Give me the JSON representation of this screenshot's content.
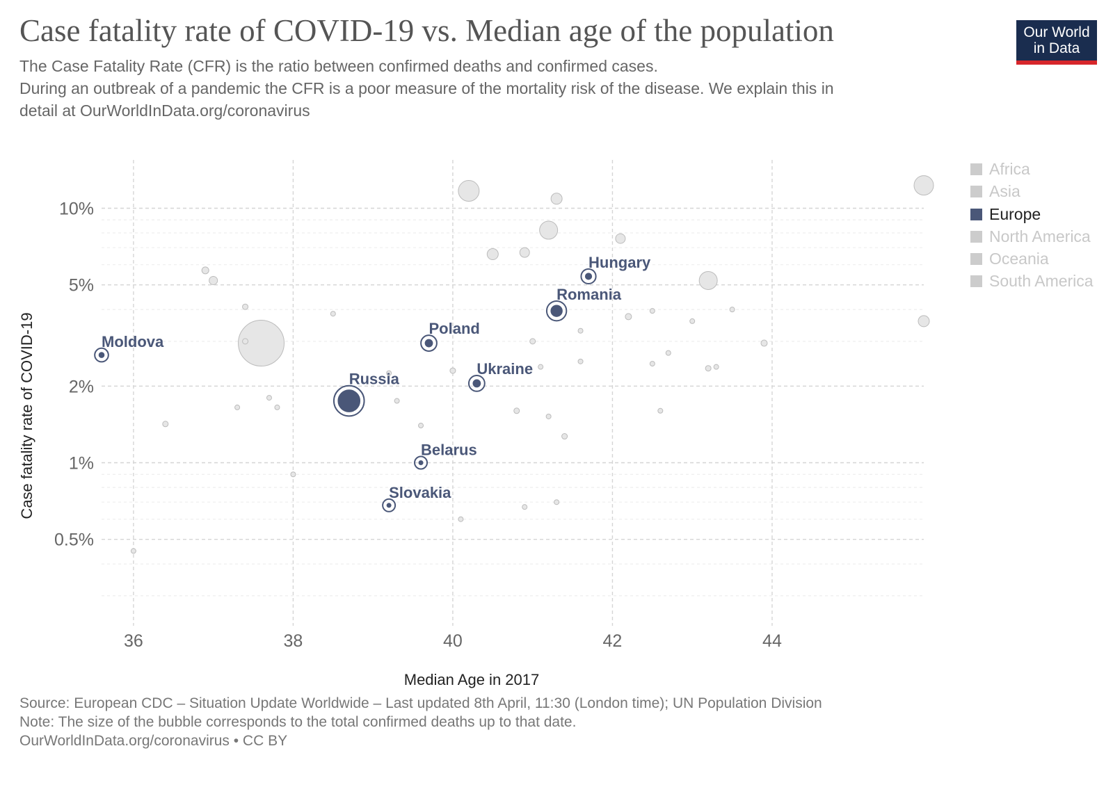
{
  "header": {
    "title": "Case fatality rate of COVID-19 vs. Median age of the population",
    "subtitle_1": "The Case Fatality Rate (CFR) is the ratio between confirmed deaths and confirmed cases.",
    "subtitle_2": "During an outbreak of a pandemic the CFR is a poor measure of the mortality risk of the disease. We explain this in",
    "subtitle_3": "detail at OurWorldInData.org/coronavirus"
  },
  "logo": {
    "line_1": "Our World",
    "line_2": "in Data",
    "bg_color": "#1a2d4f",
    "accent_color": "#d7262b"
  },
  "legend": {
    "items": [
      {
        "label": "Africa",
        "active": false
      },
      {
        "label": "Asia",
        "active": false
      },
      {
        "label": "Europe",
        "active": true
      },
      {
        "label": "North America",
        "active": false
      },
      {
        "label": "Oceania",
        "active": false
      },
      {
        "label": "South America",
        "active": false
      }
    ],
    "active_color": "#4a5778",
    "inactive_color": "#cccccc"
  },
  "footer": {
    "source": "Source: European CDC – Situation Update Worldwide – Last updated 8th April, 11:30 (London time); UN Population Division",
    "note": "Note: The size of the bubble corresponds to the total confirmed deaths up to that date.",
    "credit": "OurWorldInData.org/coronavirus • CC BY"
  },
  "chart_data": {
    "type": "scatter",
    "title": "Case fatality rate of COVID-19 vs. Median age of the population",
    "xlabel": "Median Age in 2017",
    "ylabel": "Case fatality rate of COVID-19",
    "x_scale": "linear",
    "y_scale": "log",
    "xlim": [
      35.6,
      45.9
    ],
    "ylim": [
      0.28,
      15
    ],
    "x_ticks": [
      {
        "value": 36,
        "label": "36"
      },
      {
        "value": 38,
        "label": "38"
      },
      {
        "value": 40,
        "label": "40"
      },
      {
        "value": 42,
        "label": "42"
      },
      {
        "value": 44,
        "label": "44"
      }
    ],
    "y_ticks": [
      {
        "value": 0.5,
        "label": "0.5%"
      },
      {
        "value": 1,
        "label": "1%"
      },
      {
        "value": 2,
        "label": "2%"
      },
      {
        "value": 5,
        "label": "5%"
      },
      {
        "value": 10,
        "label": "10%"
      }
    ],
    "y_minor_ticks": [
      0.3,
      0.4,
      0.6,
      0.7,
      0.8,
      0.9,
      3,
      4,
      6,
      7,
      8,
      9
    ],
    "grid": true,
    "size_meaning": "total confirmed deaths (relative bubble size)",
    "highlighted_series": "Europe",
    "highlighted": [
      {
        "name": "Moldova",
        "x": 35.6,
        "y": 2.65,
        "size": 1.2
      },
      {
        "name": "Russia",
        "x": 38.7,
        "y": 1.75,
        "size": 4.2
      },
      {
        "name": "Poland",
        "x": 39.7,
        "y": 2.95,
        "size": 1.6
      },
      {
        "name": "Ukraine",
        "x": 40.3,
        "y": 2.05,
        "size": 1.6
      },
      {
        "name": "Belarus",
        "x": 39.6,
        "y": 1.0,
        "size": 1.0
      },
      {
        "name": "Slovakia",
        "x": 39.2,
        "y": 0.68,
        "size": 1.0
      },
      {
        "name": "Romania",
        "x": 41.3,
        "y": 3.95,
        "size": 2.3
      },
      {
        "name": "Hungary",
        "x": 41.7,
        "y": 5.4,
        "size": 1.4
      }
    ],
    "others": [
      {
        "x": 37.6,
        "y": 2.95,
        "size": 33
      },
      {
        "x": 40.2,
        "y": 11.7,
        "size": 15
      },
      {
        "x": 41.2,
        "y": 8.2,
        "size": 13
      },
      {
        "x": 43.2,
        "y": 5.2,
        "size": 13
      },
      {
        "x": 45.9,
        "y": 12.3,
        "size": 14
      },
      {
        "x": 41.3,
        "y": 10.9,
        "size": 8
      },
      {
        "x": 40.5,
        "y": 6.6,
        "size": 8
      },
      {
        "x": 40.9,
        "y": 6.7,
        "size": 7
      },
      {
        "x": 42.1,
        "y": 7.6,
        "size": 7
      },
      {
        "x": 45.9,
        "y": 3.6,
        "size": 8
      },
      {
        "x": 36.9,
        "y": 5.7,
        "size": 5
      },
      {
        "x": 37.0,
        "y": 5.2,
        "size": 6
      },
      {
        "x": 37.4,
        "y": 4.1,
        "size": 4
      },
      {
        "x": 37.4,
        "y": 3.0,
        "size": 4
      },
      {
        "x": 38.5,
        "y": 3.85,
        "size": 3.5
      },
      {
        "x": 41.0,
        "y": 3.0,
        "size": 4
      },
      {
        "x": 41.6,
        "y": 3.3,
        "size": 3.5
      },
      {
        "x": 42.2,
        "y": 3.75,
        "size": 4.5
      },
      {
        "x": 42.5,
        "y": 3.95,
        "size": 3.5
      },
      {
        "x": 43.0,
        "y": 3.6,
        "size": 3.5
      },
      {
        "x": 43.5,
        "y": 4.0,
        "size": 3.5
      },
      {
        "x": 43.9,
        "y": 2.95,
        "size": 4.5
      },
      {
        "x": 42.7,
        "y": 2.7,
        "size": 3.5
      },
      {
        "x": 42.5,
        "y": 2.45,
        "size": 3.5
      },
      {
        "x": 43.2,
        "y": 2.35,
        "size": 4
      },
      {
        "x": 43.3,
        "y": 2.38,
        "size": 3.5
      },
      {
        "x": 41.6,
        "y": 2.5,
        "size": 3.5
      },
      {
        "x": 41.1,
        "y": 2.38,
        "size": 3.5
      },
      {
        "x": 40.0,
        "y": 2.3,
        "size": 4
      },
      {
        "x": 39.2,
        "y": 2.25,
        "size": 3.5
      },
      {
        "x": 37.3,
        "y": 1.65,
        "size": 3.5
      },
      {
        "x": 37.7,
        "y": 1.8,
        "size": 3.5
      },
      {
        "x": 37.8,
        "y": 1.65,
        "size": 3.5
      },
      {
        "x": 39.3,
        "y": 1.75,
        "size": 3.5
      },
      {
        "x": 40.8,
        "y": 1.6,
        "size": 4
      },
      {
        "x": 41.2,
        "y": 1.52,
        "size": 3.5
      },
      {
        "x": 42.6,
        "y": 1.6,
        "size": 3.5
      },
      {
        "x": 36.4,
        "y": 1.42,
        "size": 4
      },
      {
        "x": 39.6,
        "y": 1.4,
        "size": 3.5
      },
      {
        "x": 41.4,
        "y": 1.27,
        "size": 4
      },
      {
        "x": 38.0,
        "y": 0.9,
        "size": 3.5
      },
      {
        "x": 40.9,
        "y": 0.67,
        "size": 3.5
      },
      {
        "x": 41.3,
        "y": 0.7,
        "size": 3.5
      },
      {
        "x": 40.1,
        "y": 0.6,
        "size": 3.5
      },
      {
        "x": 36.0,
        "y": 0.45,
        "size": 3.5
      }
    ]
  }
}
